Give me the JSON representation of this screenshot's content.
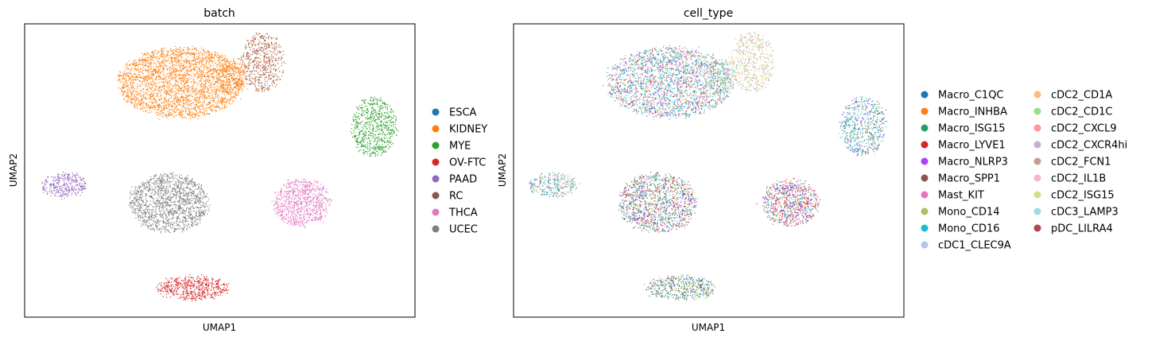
{
  "chart_data": [
    {
      "type": "scatter",
      "title": "batch",
      "xlabel": "UMAP1",
      "ylabel": "UMAP2",
      "grid": false,
      "legend_position": "right",
      "legend": [
        {
          "name": "ESCA",
          "color": "#1f77b4"
        },
        {
          "name": "KIDNEY",
          "color": "#ff7f0e"
        },
        {
          "name": "MYE",
          "color": "#2ca02c"
        },
        {
          "name": "OV-FTC",
          "color": "#d62728"
        },
        {
          "name": "PAAD",
          "color": "#9467bd"
        },
        {
          "name": "RC",
          "color": "#8c564b"
        },
        {
          "name": "THCA",
          "color": "#e377c2"
        },
        {
          "name": "UCEC",
          "color": "#7f7f7f"
        }
      ],
      "clusters": [
        {
          "name": "KIDNEY",
          "cx": 0.4,
          "cy": 0.8,
          "rx": 0.16,
          "ry": 0.12,
          "n": 2600,
          "colors": [
            "#ff7f0e"
          ]
        },
        {
          "name": "KIDNEY",
          "cx": 0.53,
          "cy": 0.82,
          "rx": 0.04,
          "ry": 0.06,
          "n": 240,
          "colors": [
            "#ff7f0e"
          ]
        },
        {
          "name": "RC",
          "cx": 0.61,
          "cy": 0.87,
          "rx": 0.055,
          "ry": 0.1,
          "n": 520,
          "colors": [
            "#8c564b",
            "#c9622a"
          ]
        },
        {
          "name": "MYE",
          "cx": 0.895,
          "cy": 0.65,
          "rx": 0.058,
          "ry": 0.1,
          "n": 650,
          "colors": [
            "#2ca02c"
          ]
        },
        {
          "name": "PAAD",
          "cx": 0.103,
          "cy": 0.45,
          "rx": 0.06,
          "ry": 0.04,
          "n": 320,
          "colors": [
            "#9467bd"
          ]
        },
        {
          "name": "UCEC",
          "cx": 0.37,
          "cy": 0.39,
          "rx": 0.1,
          "ry": 0.1,
          "n": 1400,
          "colors": [
            "#7f7f7f"
          ]
        },
        {
          "name": "THCA",
          "cx": 0.71,
          "cy": 0.39,
          "rx": 0.072,
          "ry": 0.08,
          "n": 800,
          "colors": [
            "#e377c2"
          ]
        },
        {
          "name": "OV-FTC",
          "cx": 0.43,
          "cy": 0.1,
          "rx": 0.09,
          "ry": 0.04,
          "n": 520,
          "colors": [
            "#d62728"
          ]
        }
      ]
    },
    {
      "type": "scatter",
      "title": "cell_type",
      "xlabel": "UMAP1",
      "ylabel": "UMAP2",
      "grid": false,
      "legend_position": "right",
      "legend_columns": 2,
      "legend": [
        {
          "name": "Macro_C1QC",
          "color": "#1f77b4"
        },
        {
          "name": "Macro_INHBA",
          "color": "#ff7f0e"
        },
        {
          "name": "Macro_ISG15",
          "color": "#279e68"
        },
        {
          "name": "Macro_LYVE1",
          "color": "#d62728"
        },
        {
          "name": "Macro_NLRP3",
          "color": "#aa40fc"
        },
        {
          "name": "Macro_SPP1",
          "color": "#8c564b"
        },
        {
          "name": "Mast_KIT",
          "color": "#e377c2"
        },
        {
          "name": "Mono_CD14",
          "color": "#b5bd61"
        },
        {
          "name": "Mono_CD16",
          "color": "#17becf"
        },
        {
          "name": "cDC1_CLEC9A",
          "color": "#aec7e8"
        },
        {
          "name": "cDC2_CD1A",
          "color": "#ffbb78"
        },
        {
          "name": "cDC2_CD1C",
          "color": "#98df8a"
        },
        {
          "name": "cDC2_CXCL9",
          "color": "#ff9896"
        },
        {
          "name": "cDC2_CXCR4hi",
          "color": "#c5b0d5"
        },
        {
          "name": "cDC2_FCN1",
          "color": "#c49c94"
        },
        {
          "name": "cDC2_IL1B",
          "color": "#f7b6d2"
        },
        {
          "name": "cDC2_ISG15",
          "color": "#dbdb8d"
        },
        {
          "name": "cDC3_LAMP3",
          "color": "#9edae5"
        },
        {
          "name": "pDC_LILRA4",
          "color": "#ad494a"
        }
      ],
      "clusters": [
        {
          "name": "main",
          "cx": 0.4,
          "cy": 0.8,
          "rx": 0.16,
          "ry": 0.12,
          "n": 2600,
          "colors": [
            "#17becf",
            "#17becf",
            "#9edae5",
            "#279e68",
            "#1f77b4",
            "#e377c2",
            "#b5bd61",
            "#d62728",
            "#aa40fc",
            "#c5b0d5",
            "#ffbb78"
          ]
        },
        {
          "name": "bridge",
          "cx": 0.53,
          "cy": 0.82,
          "rx": 0.04,
          "ry": 0.06,
          "n": 240,
          "colors": [
            "#98df8a",
            "#98df8a",
            "#c5b0d5",
            "#9edae5"
          ]
        },
        {
          "name": "top-right",
          "cx": 0.61,
          "cy": 0.87,
          "rx": 0.055,
          "ry": 0.1,
          "n": 520,
          "colors": [
            "#dbdb8d",
            "#98df8a",
            "#c49c94",
            "#ffbb78",
            "#c5b0d5"
          ]
        },
        {
          "name": "right",
          "cx": 0.895,
          "cy": 0.65,
          "rx": 0.058,
          "ry": 0.1,
          "n": 650,
          "colors": [
            "#17becf",
            "#9edae5",
            "#1f77b4",
            "#b5bd61",
            "#aa40fc",
            "#279e68"
          ]
        },
        {
          "name": "left",
          "cx": 0.103,
          "cy": 0.45,
          "rx": 0.06,
          "ry": 0.04,
          "n": 320,
          "colors": [
            "#1f77b4",
            "#17becf",
            "#98df8a",
            "#e377c2",
            "#b5bd61"
          ]
        },
        {
          "name": "center",
          "cx": 0.37,
          "cy": 0.39,
          "rx": 0.1,
          "ry": 0.1,
          "n": 1400,
          "colors": [
            "#d62728",
            "#e377c2",
            "#b5bd61",
            "#17becf",
            "#1f77b4",
            "#aa40fc",
            "#8c564b",
            "#dbdb8d",
            "#279e68"
          ]
        },
        {
          "name": "center-right",
          "cx": 0.71,
          "cy": 0.39,
          "rx": 0.072,
          "ry": 0.08,
          "n": 800,
          "colors": [
            "#ff7f0e",
            "#8c564b",
            "#1f77b4",
            "#aa40fc",
            "#e377c2",
            "#d62728",
            "#17becf"
          ]
        },
        {
          "name": "bottom",
          "cx": 0.43,
          "cy": 0.1,
          "rx": 0.09,
          "ry": 0.04,
          "n": 520,
          "colors": [
            "#1f77b4",
            "#1f77b4",
            "#8c564b",
            "#b5bd61",
            "#98df8a"
          ]
        }
      ]
    }
  ]
}
